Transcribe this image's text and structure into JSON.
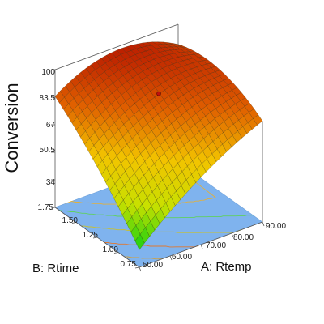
{
  "chart_data": {
    "type": "surface3d",
    "title": "",
    "zlabel": "Conversion",
    "xlabel": "A: Rtemp",
    "ylabel": "B: Rtime",
    "x_ticks": [
      "50.00",
      "60.00",
      "70.00",
      "80.00",
      "90.00"
    ],
    "y_ticks": [
      "0.75",
      "1.00",
      "1.25",
      "1.50",
      "1.75"
    ],
    "z_ticks": [
      "34",
      "50.5",
      "67",
      "83.5",
      "100"
    ],
    "x_range": [
      50,
      90
    ],
    "y_range": [
      0.75,
      1.75
    ],
    "z_range": [
      17.5,
      100
    ],
    "surface_corners": [
      {
        "x": 50,
        "y": 0.75,
        "z": 28
      },
      {
        "x": 90,
        "y": 0.75,
        "z": 78
      },
      {
        "x": 50,
        "y": 1.75,
        "z": 84
      },
      {
        "x": 90,
        "y": 1.75,
        "z": 88
      }
    ],
    "design_point": {
      "x": 70,
      "y": 1.25,
      "z": 90
    },
    "colormap": [
      "#10d010",
      "#c8e000",
      "#f2c400",
      "#e06000",
      "#b81800"
    ],
    "floor_color": "#7fb3ee"
  }
}
